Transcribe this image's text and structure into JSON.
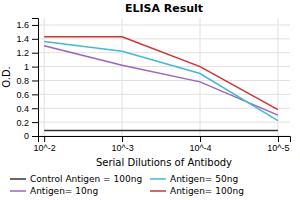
{
  "chart_data": {
    "type": "line",
    "title": "ELISA Result",
    "xlabel": "Serial Dilutions of Antibody",
    "ylabel": "O.D.",
    "x": [
      0.01,
      0.001,
      0.0001,
      1e-05
    ],
    "series": [
      {
        "name": "Control Antigen = 100ng",
        "color": "#333333",
        "values": [
          0.08,
          0.08,
          0.08,
          0.08
        ]
      },
      {
        "name": "Antigen= 10ng",
        "color": "#9966bb",
        "values": [
          1.3,
          1.02,
          0.78,
          0.3
        ]
      },
      {
        "name": "Antigen= 50ng",
        "color": "#44bbcc",
        "values": [
          1.36,
          1.22,
          0.9,
          0.22
        ]
      },
      {
        "name": "Antigen= 100ng",
        "color": "#cc3333",
        "values": [
          1.43,
          1.43,
          1.0,
          0.38
        ]
      }
    ],
    "xlim": [
      0.012,
      7e-06
    ],
    "ylim": [
      0,
      1.7
    ],
    "xticks": [
      {
        "value": 0.01,
        "label": "10^-2"
      },
      {
        "value": 0.001,
        "label": "10^-3"
      },
      {
        "value": 0.0001,
        "label": "10^-4"
      },
      {
        "value": 1e-05,
        "label": "10^-5"
      }
    ],
    "yticks": [
      0,
      0.2,
      0.4,
      0.6,
      0.8,
      1,
      1.2,
      1.4,
      1.6
    ],
    "log": "x",
    "grid": true,
    "legend": "bottom"
  }
}
